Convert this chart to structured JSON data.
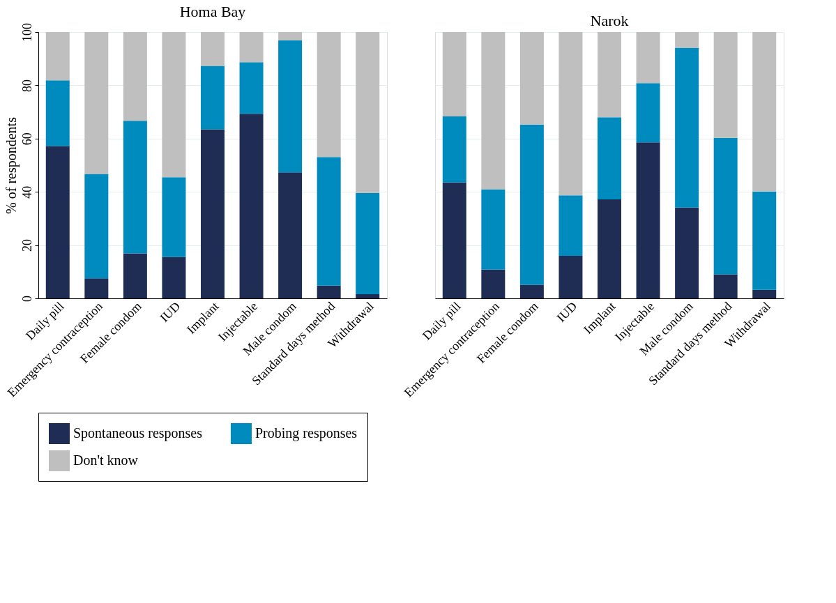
{
  "chart_data": [
    {
      "type": "bar",
      "stacked": true,
      "title": "Homa Bay",
      "ylabel": "% of respondents",
      "categories": [
        "Daily pill",
        "Emergency contraception",
        "Female condom",
        "IUD",
        "Implant",
        "Injectable",
        "Male condom",
        "Standard days method",
        "Withdrawal"
      ],
      "ylim": [
        0,
        100
      ],
      "yticks": [
        0,
        20,
        40,
        60,
        80,
        100
      ],
      "grid": "y",
      "legend": "bottom",
      "series": [
        {
          "name": "Spontaneous responses",
          "color": "#1f2d55",
          "values": [
            57.2,
            7.5,
            16.9,
            15.6,
            63.5,
            69.3,
            47.3,
            4.8,
            1.6
          ]
        },
        {
          "name": "Probing responses",
          "color": "#008bbf",
          "values": [
            24.7,
            39.2,
            49.8,
            29.9,
            23.8,
            19.4,
            49.6,
            48.3,
            37.9
          ]
        },
        {
          "name": "Don't know",
          "color": "#bfbfbf",
          "values": [
            18.1,
            53.3,
            33.3,
            54.5,
            12.7,
            11.3,
            3.1,
            46.9,
            60.5
          ]
        }
      ]
    },
    {
      "type": "bar",
      "stacked": true,
      "title": "Narok",
      "categories": [
        "Daily pill",
        "Emergency contraception",
        "Female condom",
        "IUD",
        "Implant",
        "Injectable",
        "Male condom",
        "Standard days method",
        "Withdrawal"
      ],
      "ylim": [
        0,
        100
      ],
      "yticks": [
        0,
        20,
        40,
        60,
        80,
        100
      ],
      "grid": "y",
      "legend": "bottom",
      "tick_labels": "x",
      "series": [
        {
          "name": "Spontaneous responses",
          "color": "#1f2d55",
          "values": [
            43.5,
            10.8,
            5.1,
            16.0,
            37.2,
            58.6,
            34.1,
            9.0,
            3.2
          ]
        },
        {
          "name": "Probing responses",
          "color": "#008bbf",
          "values": [
            24.8,
            30.2,
            60.1,
            22.7,
            30.8,
            22.2,
            60.0,
            51.3,
            36.9
          ]
        },
        {
          "name": "Don't know",
          "color": "#bfbfbf",
          "values": [
            31.7,
            59.0,
            34.8,
            61.3,
            32.0,
            19.2,
            5.9,
            39.7,
            59.9
          ]
        }
      ]
    }
  ]
}
